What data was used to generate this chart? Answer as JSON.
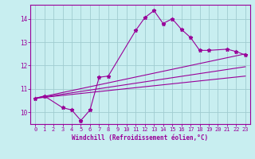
{
  "xlabel": "Windchill (Refroidissement éolien,°C)",
  "xlim": [
    -0.5,
    23.5
  ],
  "ylim": [
    9.5,
    14.6
  ],
  "yticks": [
    10,
    11,
    12,
    13,
    14
  ],
  "xticks": [
    0,
    1,
    2,
    3,
    4,
    5,
    6,
    7,
    8,
    9,
    10,
    11,
    12,
    13,
    14,
    15,
    16,
    17,
    18,
    19,
    20,
    21,
    22,
    23
  ],
  "bg_color": "#c8eef0",
  "line_color": "#990099",
  "grid_color": "#a0ccd0",
  "series_main": {
    "x": [
      0,
      1,
      3,
      4,
      5,
      6,
      7,
      8,
      11,
      12,
      13,
      14,
      15,
      16,
      17,
      18,
      19,
      21,
      22,
      23
    ],
    "y": [
      10.6,
      10.7,
      10.2,
      10.1,
      9.65,
      10.1,
      11.5,
      11.55,
      13.5,
      14.05,
      14.35,
      13.8,
      14.0,
      13.55,
      13.2,
      12.65,
      12.65,
      12.7,
      12.6,
      12.45
    ]
  },
  "trend_lines": [
    {
      "x": [
        0,
        23
      ],
      "y": [
        10.6,
        12.5
      ]
    },
    {
      "x": [
        0,
        23
      ],
      "y": [
        10.6,
        11.95
      ]
    },
    {
      "x": [
        0,
        23
      ],
      "y": [
        10.6,
        11.55
      ]
    }
  ],
  "tick_fontsize": 5,
  "xlabel_fontsize": 5.5
}
